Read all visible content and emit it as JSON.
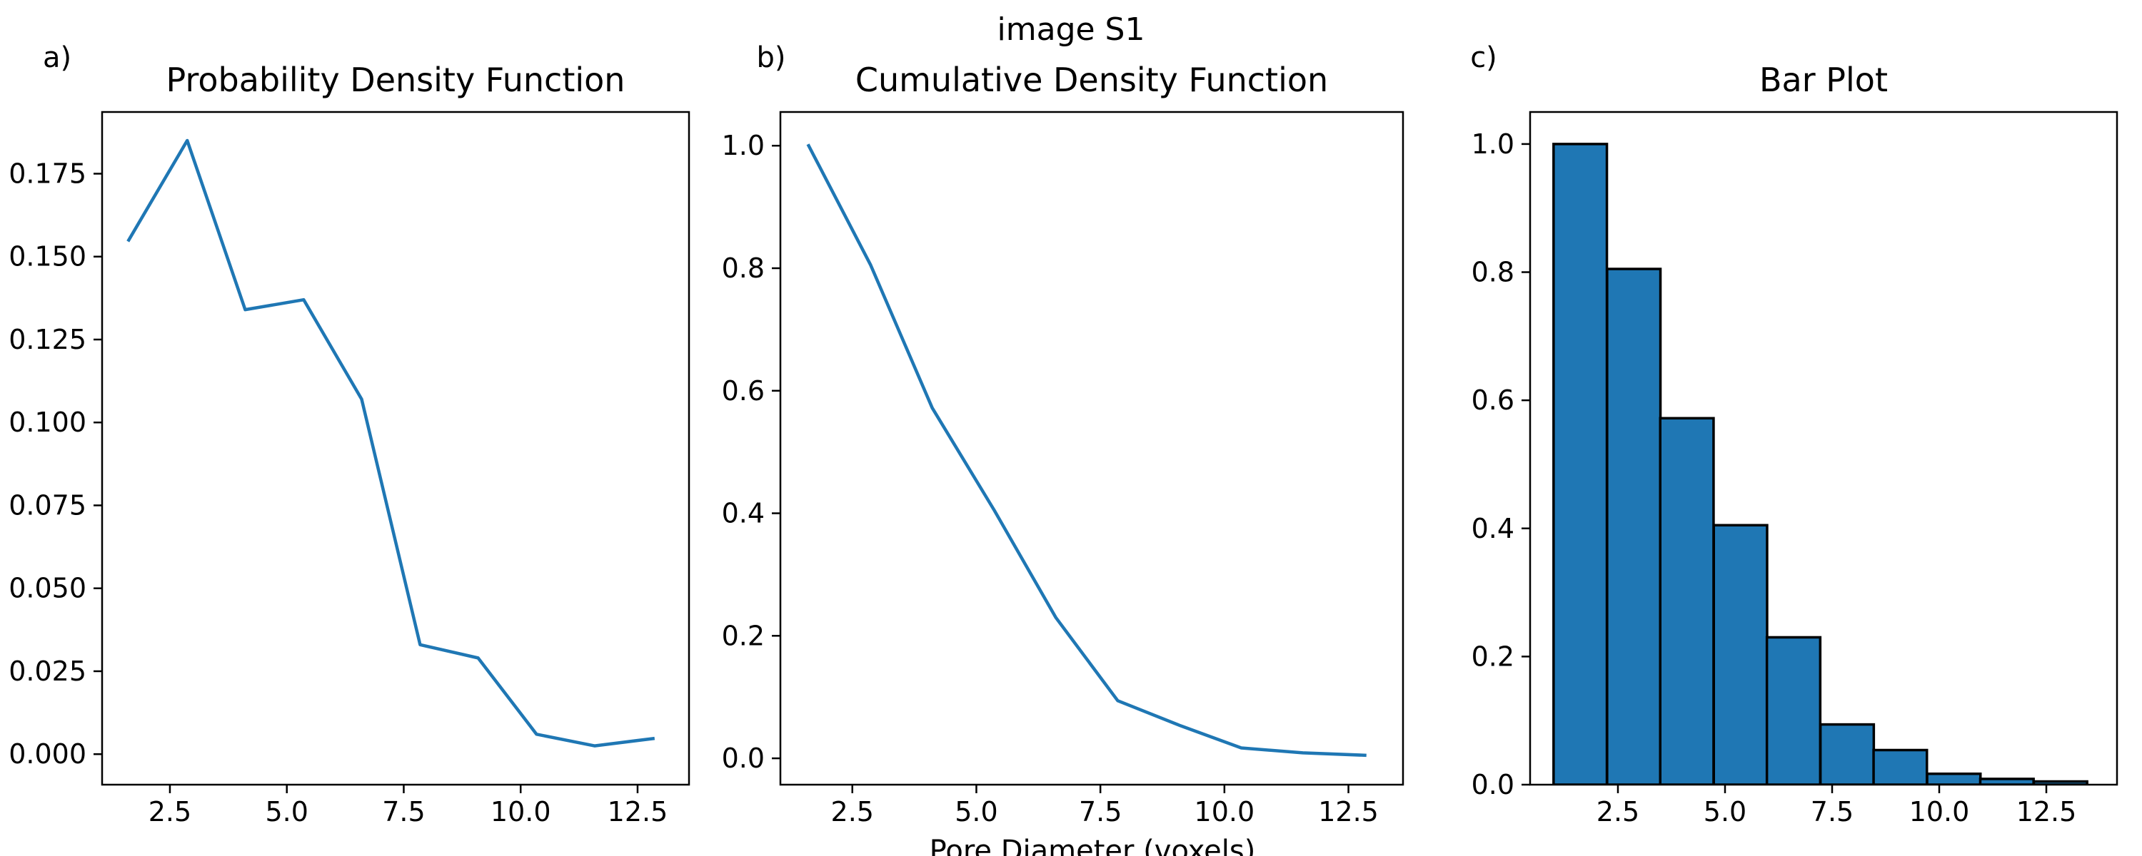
{
  "figure": {
    "suptitle": "image S1",
    "supxlabel": "Pore Diameter (voxels)"
  },
  "colors": {
    "line": "#1f77b4",
    "bar_fill": "#1f77b4",
    "bar_edge": "#000000",
    "axes": "#000000",
    "background": "#ffffff"
  },
  "chart_data": [
    {
      "type": "line",
      "panel_label": "a)",
      "title": "Probability Density Function",
      "xlabel": "",
      "ylabel": "",
      "grid": false,
      "xlim": [
        1.05,
        13.6
      ],
      "ylim": [
        -0.0092,
        0.1936
      ],
      "xticks": [
        2.5,
        5.0,
        7.5,
        10.0,
        12.5
      ],
      "xtick_labels": [
        "2.5",
        "5.0",
        "7.5",
        "10.0",
        "12.5"
      ],
      "yticks": [
        0.0,
        0.025,
        0.05,
        0.075,
        0.1,
        0.125,
        0.15,
        0.175
      ],
      "ytick_labels": [
        "0.000",
        "0.025",
        "0.050",
        "0.075",
        "0.100",
        "0.125",
        "0.150",
        "0.175"
      ],
      "series": [
        {
          "x": [
            1.62,
            2.87,
            4.11,
            5.36,
            6.6,
            7.85,
            9.09,
            10.34,
            11.58,
            12.83
          ],
          "y": [
            0.155,
            0.185,
            0.134,
            0.137,
            0.107,
            0.033,
            0.029,
            0.006,
            0.0025,
            0.0047
          ]
        }
      ]
    },
    {
      "type": "line",
      "panel_label": "b)",
      "title": "Cumulative Density Function",
      "xlabel": "",
      "ylabel": "",
      "grid": false,
      "xlim": [
        1.05,
        13.6
      ],
      "ylim": [
        -0.043,
        1.055
      ],
      "xticks": [
        2.5,
        5.0,
        7.5,
        10.0,
        12.5
      ],
      "xtick_labels": [
        "2.5",
        "5.0",
        "7.5",
        "10.0",
        "12.5"
      ],
      "yticks": [
        0.0,
        0.2,
        0.4,
        0.6,
        0.8,
        1.0
      ],
      "ytick_labels": [
        "0.0",
        "0.2",
        "0.4",
        "0.6",
        "0.8",
        "1.0"
      ],
      "series": [
        {
          "x": [
            1.62,
            2.87,
            4.11,
            5.36,
            6.6,
            7.85,
            9.09,
            10.34,
            11.58,
            12.83
          ],
          "y": [
            1.0,
            0.805,
            0.572,
            0.405,
            0.23,
            0.094,
            0.054,
            0.017,
            0.009,
            0.005
          ]
        }
      ]
    },
    {
      "type": "bar",
      "panel_label": "c)",
      "title": "Bar Plot",
      "xlabel": "",
      "ylabel": "",
      "grid": false,
      "xlim": [
        0.45,
        14.15
      ],
      "ylim": [
        0.0,
        1.05
      ],
      "xticks": [
        2.5,
        5.0,
        7.5,
        10.0,
        12.5
      ],
      "xtick_labels": [
        "2.5",
        "5.0",
        "7.5",
        "10.0",
        "12.5"
      ],
      "yticks": [
        0.0,
        0.2,
        0.4,
        0.6,
        0.8,
        1.0
      ],
      "ytick_labels": [
        "0.0",
        "0.2",
        "0.4",
        "0.6",
        "0.8",
        "1.0"
      ],
      "bar_width": 1.245,
      "x": [
        1.62,
        2.87,
        4.11,
        5.36,
        6.6,
        7.85,
        9.09,
        10.34,
        11.58,
        12.83
      ],
      "values": [
        1.0,
        0.805,
        0.572,
        0.405,
        0.23,
        0.094,
        0.054,
        0.017,
        0.009,
        0.005
      ]
    }
  ]
}
